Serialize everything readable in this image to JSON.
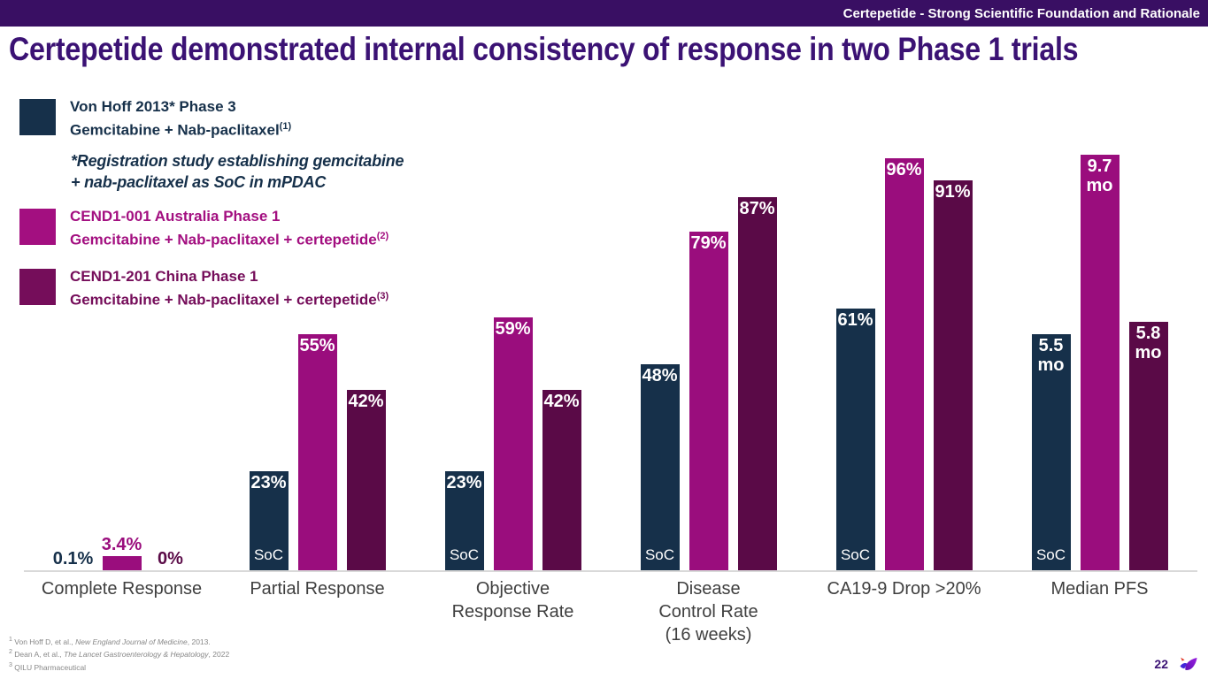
{
  "slide": {
    "kicker": "Certepetide - Strong Scientific Foundation and Rationale",
    "title": "Certepetide demonstrated internal consistency of response in two Phase 1 trials",
    "page_number": "22"
  },
  "colors": {
    "topbar_bg": "#390f63",
    "title_text": "#3b1274",
    "axis_line": "#d9d9d9",
    "category_text": "#3f3f3f",
    "footnote_text": "#888888",
    "soc_navy": "#16304a",
    "australia_magenta": "#9a0d7d",
    "china_plum": "#5a0a47"
  },
  "legend": {
    "items": [
      {
        "label": "Von Hoff 2013* Phase 3",
        "sublabel": "Gemcitabine + Nab-paclitaxel",
        "sup": "(1)",
        "color": "#16304a"
      },
      {
        "label": "CEND1-001 Australia Phase 1",
        "sublabel": "Gemcitabine + Nab-paclitaxel + certepetide",
        "sup": "(2)",
        "color": "#a30f80"
      },
      {
        "label": "CEND1-201 China Phase 1",
        "sublabel": "Gemcitabine + Nab-paclitaxel + certepetide",
        "sup": "(3)",
        "color": "#750d5a"
      }
    ],
    "note": "*Registration study establishing gemcitabine\n+ nab-paclitaxel as SoC in mPDAC"
  },
  "chart_data": {
    "type": "bar",
    "title": "",
    "categories": [
      "Complete Response",
      "Partial Response",
      "Objective\nResponse Rate",
      "Disease\nControl Rate\n(16 weeks)",
      "CA19-9 Drop >20%",
      "Median PFS"
    ],
    "category_units": [
      "%",
      "%",
      "%",
      "%",
      "%",
      "months"
    ],
    "series": [
      {
        "key": "soc",
        "name": "Von Hoff 2013 Phase 3 — Gemcitabine + Nab-paclitaxel (SoC)",
        "color": "#16304a",
        "values": [
          0.1,
          23,
          23,
          48,
          61,
          5.5
        ],
        "labels": [
          "0.1%",
          "23%",
          "23%",
          "48%",
          "61%",
          "5.5 mo"
        ],
        "bar_heights_pct": [
          0.1,
          23,
          23,
          48,
          61,
          55
        ],
        "bar_tag": "SoC",
        "tag_groups": [
          1,
          2,
          3,
          4,
          5
        ]
      },
      {
        "key": "cend1-001",
        "name": "CEND1-001 Australia Phase 1 — Gemcitabine + Nab-paclitaxel + certepetide",
        "color": "#9a0d7d",
        "values": [
          3.4,
          55,
          59,
          79,
          96,
          9.7
        ],
        "labels": [
          "3.4%",
          "55%",
          "59%",
          "79%",
          "96%",
          "9.7 mo"
        ],
        "bar_heights_pct": [
          3.4,
          55,
          59,
          79,
          96,
          97
        ]
      },
      {
        "key": "cend1-201",
        "name": "CEND1-201 China Phase 1 — Gemcitabine + Nab-paclitaxel + certepetide",
        "color": "#5a0a47",
        "values": [
          0,
          42,
          42,
          87,
          91,
          5.8
        ],
        "labels": [
          "0%",
          "42%",
          "42%",
          "87%",
          "91%",
          "5.8 mo"
        ],
        "bar_heights_pct": [
          0,
          42,
          42,
          87,
          91,
          58
        ]
      }
    ],
    "outside_label_groups": [
      0
    ],
    "ylim": [
      0,
      100
    ],
    "grid": false,
    "legend_position": "top-left"
  },
  "footnotes": [
    {
      "sup": "1",
      "pre": "Von Hoff D, et al., ",
      "italic": "New England Journal of Medicine",
      "post": ", 2013."
    },
    {
      "sup": "2",
      "pre": "Dean A, et al., ",
      "italic": "The Lancet Gastroenterology & Hepatology",
      "post": ", 2022"
    },
    {
      "sup": "3",
      "pre": "QILU Pharmaceutical",
      "italic": "",
      "post": ""
    }
  ],
  "logo": {
    "name": "hummingbird-logo",
    "colors": [
      "#e23a2a",
      "#4326d9",
      "#8b17d6"
    ]
  }
}
